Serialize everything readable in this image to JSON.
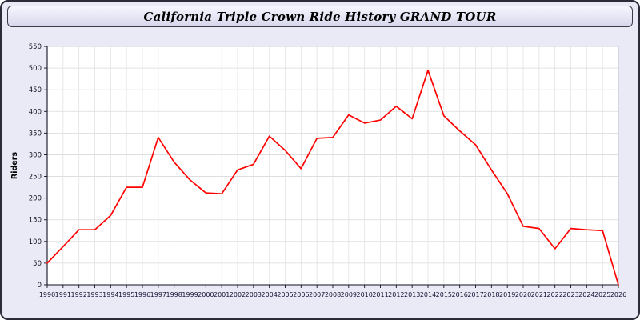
{
  "header": {
    "title": "California Triple Crown Ride History GRAND TOUR"
  },
  "chart_data": {
    "type": "line",
    "title": "California Triple Crown Ride History GRAND TOUR",
    "xlabel": "",
    "ylabel": "Riders",
    "x": [
      1990,
      1991,
      1992,
      1993,
      1994,
      1995,
      1996,
      1997,
      1998,
      1999,
      2000,
      2001,
      2002,
      2003,
      2004,
      2005,
      2006,
      2007,
      2008,
      2009,
      2010,
      2011,
      2012,
      2013,
      2014,
      2015,
      2016,
      2017,
      2018,
      2019,
      2020,
      2021,
      2022,
      2023,
      2024,
      2025,
      2026
    ],
    "values": [
      50,
      88,
      127,
      127,
      160,
      225,
      225,
      340,
      283,
      242,
      212,
      210,
      265,
      278,
      343,
      310,
      268,
      338,
      340,
      392,
      373,
      380,
      412,
      383,
      495,
      390,
      355,
      323,
      265,
      210,
      135,
      130,
      83,
      130,
      127,
      125,
      0
    ],
    "ylim": [
      0,
      550
    ],
    "ytick_step": 50,
    "line_color": "#ff0000",
    "grid": true,
    "legend": "none",
    "plot_bg": "#ffffff",
    "page_bg": "#eaeaf6"
  }
}
